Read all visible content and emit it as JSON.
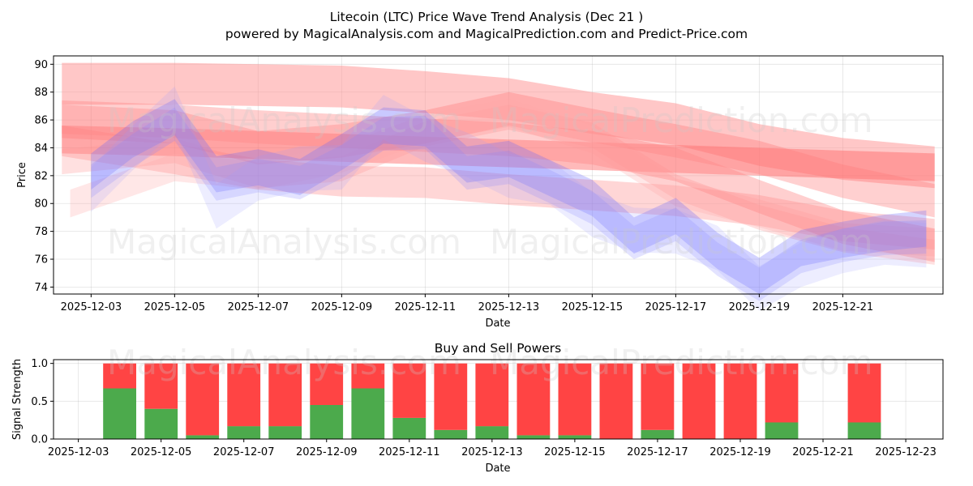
{
  "chart_data": [
    {
      "type": "area",
      "title": "Litecoin (LTC) Price Wave Trend Analysis (Dec 21 )",
      "subtitle": "powered by MagicalAnalysis.com and MagicalPrediction.com and Predict-Price.com",
      "xlabel": "Date",
      "ylabel": "Price",
      "ylim": [
        73.5,
        90.6
      ],
      "xlim": [
        -0.9,
        20.4
      ],
      "x_ticks": [
        "2025-12-03",
        "2025-12-05",
        "2025-12-07",
        "2025-12-09",
        "2025-12-11",
        "2025-12-13",
        "2025-12-15",
        "2025-12-17",
        "2025-12-19",
        "2025-12-21"
      ],
      "y_ticks": [
        74,
        76,
        78,
        80,
        82,
        84,
        86,
        88,
        90
      ],
      "grid": true,
      "watermarks": [
        "MagicalAnalysis.com",
        "MagicalPrediction.com"
      ],
      "series": [
        {
          "name": "actual-price-wave-1",
          "color": "#6666ff",
          "x": [
            0,
            1,
            2,
            3,
            4,
            5,
            6,
            7,
            8,
            9,
            10,
            11,
            12,
            13,
            14,
            15,
            16,
            17,
            18,
            19,
            20
          ],
          "values": [
            82.3,
            84.6,
            86.2,
            82.1,
            82.6,
            81.9,
            83.7,
            85.6,
            85.4,
            82.8,
            83.2,
            81.8,
            80.4,
            77.7,
            79.1,
            76.6,
            74.8,
            76.8,
            77.4,
            77.9,
            78.2
          ]
        },
        {
          "name": "actual-price-wave-2",
          "color": "#8080ff",
          "x": [
            0,
            1,
            2,
            3,
            4,
            5,
            6,
            7,
            8,
            9,
            10,
            11,
            12,
            13,
            14,
            15,
            16,
            17,
            18,
            19,
            20
          ],
          "values": [
            81.6,
            83.8,
            85.7,
            81.4,
            82.0,
            81.5,
            83.0,
            85.0,
            85.1,
            82.2,
            82.6,
            81.2,
            79.7,
            77.2,
            78.5,
            76.0,
            74.2,
            76.2,
            77.0,
            77.5,
            77.6
          ]
        },
        {
          "name": "actual-price-wave-3",
          "color": "#9999ff",
          "x": [
            0,
            1,
            2,
            3,
            4,
            5,
            6,
            7,
            8,
            9,
            10,
            11,
            12,
            13,
            14,
            15,
            16,
            17,
            18,
            19,
            20
          ],
          "values": [
            81.0,
            84.0,
            86.8,
            79.8,
            81.8,
            82.5,
            82.6,
            86.2,
            84.6,
            83.5,
            82.0,
            81.5,
            79.2,
            78.1,
            78.0,
            76.8,
            73.9,
            75.6,
            76.6,
            77.2,
            77.0
          ]
        },
        {
          "name": "trend-wave-upper",
          "color": "#ff9999",
          "x": [
            -0.7,
            2,
            4,
            6,
            8,
            10,
            12,
            14,
            16,
            18,
            20.2
          ],
          "values": [
            88.6,
            88.6,
            88.5,
            88.4,
            88.0,
            87.5,
            86.5,
            85.7,
            84.2,
            83.2,
            82.6
          ]
        },
        {
          "name": "trend-wave-mid-1",
          "color": "#ff6666",
          "x": [
            -0.7,
            2,
            4,
            6,
            8,
            10,
            12,
            14,
            16,
            18,
            20.2
          ],
          "values": [
            84.6,
            84.4,
            84.2,
            84.0,
            83.8,
            83.6,
            83.4,
            83.2,
            83.0,
            82.8,
            82.6
          ]
        },
        {
          "name": "trend-wave-mid-2",
          "color": "#ff7777",
          "x": [
            -0.7,
            2,
            4,
            6,
            8,
            10,
            12,
            14,
            16,
            18,
            20.2
          ],
          "values": [
            85.9,
            85.5,
            84.0,
            84.5,
            85.5,
            86.8,
            85.6,
            84.5,
            83.3,
            81.6,
            80.2
          ]
        },
        {
          "name": "trend-wave-mid-3",
          "color": "#ff8080",
          "x": [
            -0.7,
            2,
            4,
            6,
            8,
            10,
            12,
            14,
            16,
            18,
            20.2
          ],
          "values": [
            84.5,
            83.2,
            82.1,
            81.6,
            81.5,
            81.0,
            80.6,
            80.2,
            79.5,
            78.4,
            77.8
          ]
        },
        {
          "name": "trend-wave-lower-1",
          "color": "#ff9999",
          "x": [
            -0.7,
            2,
            4,
            6,
            8,
            10,
            12,
            14,
            16,
            18,
            20.2
          ],
          "values": [
            83.0,
            83.8,
            82.0,
            82.5,
            85.0,
            86.2,
            84.9,
            81.2,
            79.0,
            77.4,
            76.5
          ]
        },
        {
          "name": "trend-wave-lower-2",
          "color": "#ffaaaa",
          "x": [
            -0.5,
            2,
            4,
            6,
            8,
            10,
            12,
            14,
            16,
            18,
            20.2
          ],
          "values": [
            80.0,
            82.6,
            82.0,
            83.2,
            85.4,
            86.5,
            84.6,
            80.8,
            79.3,
            77.6,
            77.2
          ]
        },
        {
          "name": "trend-wave-lower-3",
          "color": "#ff8888",
          "x": [
            -0.7,
            2,
            4,
            6,
            8,
            10,
            12,
            14,
            16,
            18,
            20.2
          ],
          "values": [
            86.2,
            85.9,
            85.5,
            85.2,
            84.9,
            84.6,
            84.0,
            82.8,
            80.5,
            78.3,
            77.0
          ]
        }
      ]
    },
    {
      "type": "bar",
      "title": "Buy and Sell Powers",
      "xlabel": "Date",
      "ylabel": "Signal Strength",
      "ylim": [
        0,
        1.05
      ],
      "xlim": [
        -0.6,
        20.9
      ],
      "x_ticks": [
        "2025-12-03",
        "2025-12-05",
        "2025-12-07",
        "2025-12-09",
        "2025-12-11",
        "2025-12-13",
        "2025-12-15",
        "2025-12-17",
        "2025-12-19",
        "2025-12-21",
        "2025-12-23"
      ],
      "y_ticks": [
        "0.0",
        "0.5",
        "1.0"
      ],
      "grid": true,
      "x": [
        1,
        2,
        3,
        4,
        5,
        6,
        7,
        8,
        9,
        10,
        11,
        12,
        13,
        14,
        15,
        16,
        17,
        19
      ],
      "series": [
        {
          "name": "Buy",
          "color": "#4caa4c",
          "values": [
            0.67,
            0.4,
            0.05,
            0.17,
            0.17,
            0.45,
            0.67,
            0.28,
            0.12,
            0.17,
            0.05,
            0.05,
            0.0,
            0.12,
            0.0,
            0.0,
            0.22,
            0.22
          ]
        },
        {
          "name": "Sell",
          "color": "#ff4444",
          "values": [
            0.33,
            0.6,
            0.95,
            0.83,
            0.83,
            0.55,
            0.33,
            0.72,
            0.88,
            0.83,
            0.95,
            0.95,
            1.0,
            0.88,
            1.0,
            1.0,
            0.78,
            0.78
          ]
        }
      ]
    }
  ]
}
